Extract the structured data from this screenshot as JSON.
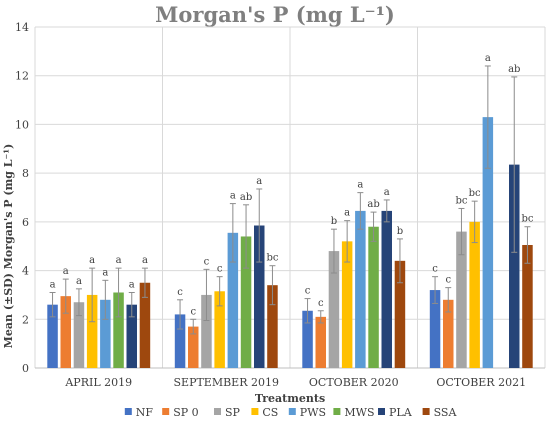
{
  "chart_data": {
    "type": "bar",
    "title": "Morgan's P (mg L⁻¹)",
    "xlabel": "Treatments",
    "ylabel": "Mean (±SD) Morgan's P (mg L⁻¹)",
    "ylim": [
      0,
      14
    ],
    "yticks": [
      0,
      2,
      4,
      6,
      8,
      10,
      12,
      14
    ],
    "grid": true,
    "legend_position": "bottom",
    "categories": [
      "APRIL 2019",
      "SEPTEMBER 2019",
      "OCTOBER 2020",
      "OCTOBER 2021"
    ],
    "series": [
      {
        "name": "NF",
        "color": "#4472c4",
        "values": [
          2.6,
          2.2,
          2.35,
          3.2
        ],
        "sd": [
          0.5,
          0.6,
          0.5,
          0.55
        ],
        "letters": [
          "a",
          "c",
          "c",
          "c"
        ]
      },
      {
        "name": "SP 0",
        "color": "#ed7d31",
        "values": [
          2.95,
          1.7,
          2.1,
          2.8
        ],
        "sd": [
          0.7,
          0.3,
          0.25,
          0.5
        ],
        "letters": [
          "a",
          "c",
          "c",
          "c"
        ]
      },
      {
        "name": "SP",
        "color": "#a5a5a5",
        "values": [
          2.7,
          3.0,
          4.8,
          5.6
        ],
        "sd": [
          0.55,
          1.05,
          0.9,
          0.95
        ],
        "letters": [
          "a",
          "c",
          "b",
          "bc"
        ]
      },
      {
        "name": "CS",
        "color": "#ffc000",
        "values": [
          3.0,
          3.15,
          5.2,
          6.0
        ],
        "sd": [
          1.1,
          0.6,
          0.85,
          0.85
        ],
        "letters": [
          "a",
          "c",
          "a",
          "bc"
        ]
      },
      {
        "name": "PWS",
        "color": "#5b9bd5",
        "values": [
          2.8,
          5.55,
          6.45,
          10.3
        ],
        "sd": [
          0.8,
          1.2,
          0.75,
          2.1
        ],
        "letters": [
          "a",
          "a",
          "a",
          "a"
        ]
      },
      {
        "name": "MWS",
        "color": "#70ad47",
        "values": [
          3.1,
          5.4,
          5.8,
          null
        ],
        "sd": [
          1.0,
          1.3,
          0.6,
          null
        ],
        "letters": [
          "a",
          "ab",
          "ab",
          ""
        ]
      },
      {
        "name": "PLA",
        "color": "#264478",
        "values": [
          2.6,
          5.85,
          6.45,
          8.35
        ],
        "sd": [
          0.5,
          1.5,
          0.45,
          3.6
        ],
        "letters": [
          "a",
          "a",
          "a",
          "ab"
        ]
      },
      {
        "name": "SSA",
        "color": "#9e480e",
        "values": [
          3.5,
          3.4,
          4.4,
          5.05
        ],
        "sd": [
          0.6,
          0.8,
          0.9,
          0.75
        ],
        "letters": [
          "a",
          "bc",
          "b",
          "bc"
        ]
      }
    ]
  }
}
